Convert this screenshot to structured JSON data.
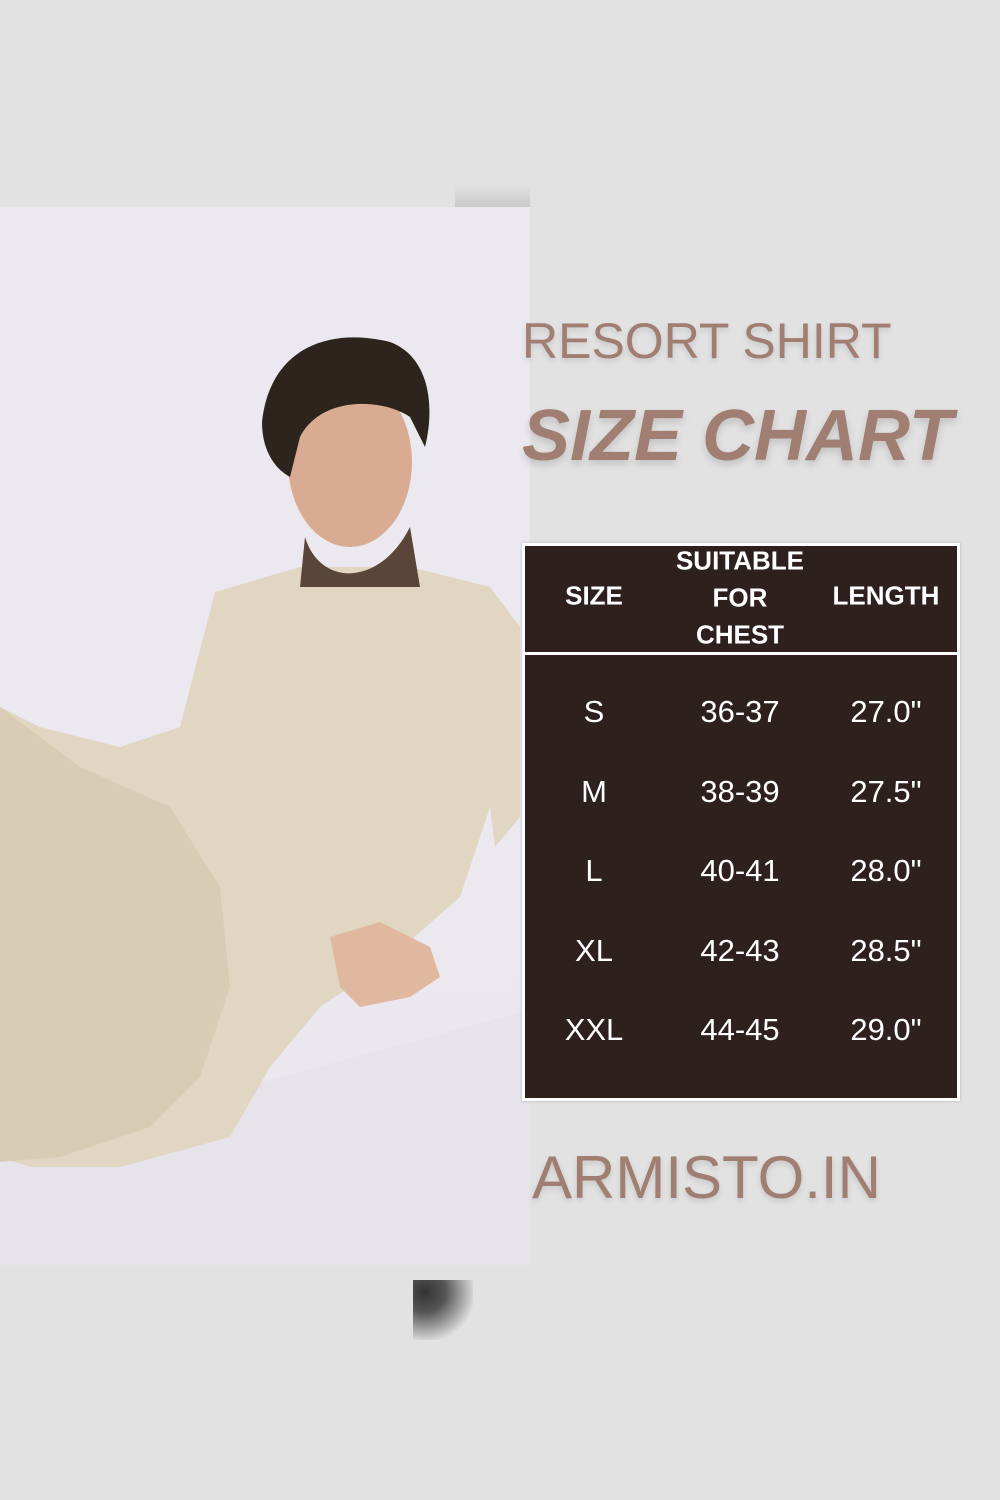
{
  "header": {
    "subtitle": "RESORT SHIRT",
    "title": "SIZE CHART"
  },
  "table": {
    "columns": [
      "SIZE",
      "SUITABLE FOR CHEST",
      "LENGTH"
    ],
    "rows": [
      [
        "S",
        "36-37",
        "27.0\""
      ],
      [
        "M",
        "38-39",
        "27.5\""
      ],
      [
        "L",
        "40-41",
        "28.0\""
      ],
      [
        "XL",
        "42-43",
        "28.5\""
      ],
      [
        "XXL",
        "44-45",
        "29.0\""
      ]
    ]
  },
  "brand": "ARMISTO.IN",
  "colors": {
    "accent": "#a07e72",
    "table_bg": "#2e211d",
    "background": "#e2e2e2"
  }
}
